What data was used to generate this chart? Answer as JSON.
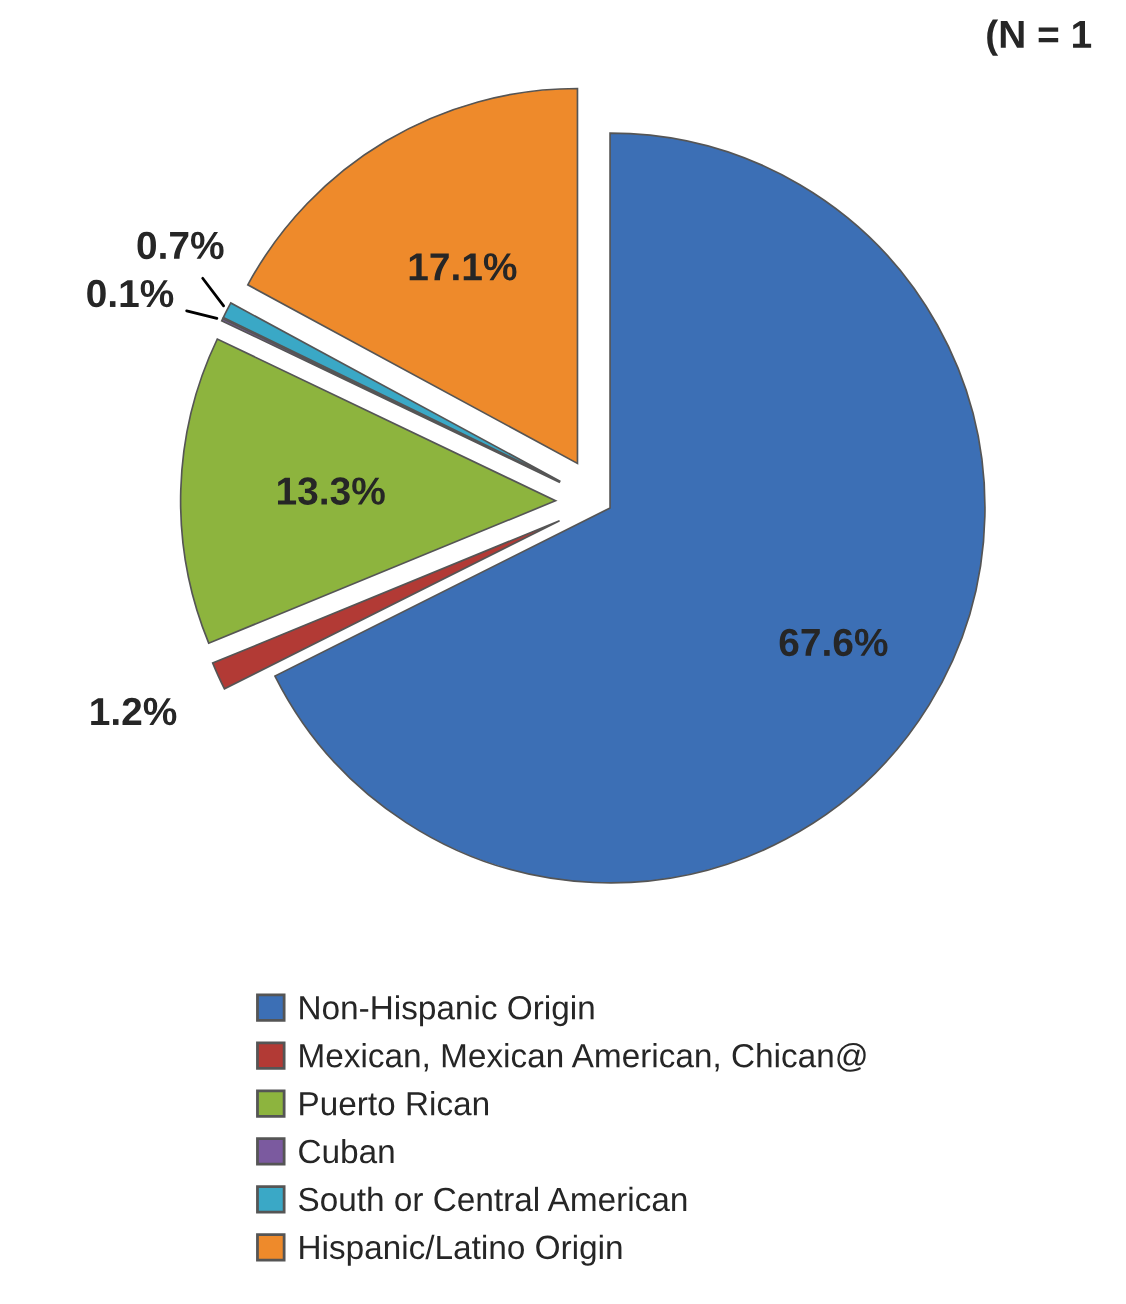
{
  "chart_data": {
    "type": "pie",
    "categories": [
      "Non-Hispanic Origin",
      "Mexican, Mexican American, Chican@",
      "Puerto Rican",
      "Cuban",
      "South or Central American",
      "Hispanic/Latino Origin"
    ],
    "values": [
      67.6,
      1.2,
      13.3,
      0.1,
      0.7,
      17.1
    ],
    "colors": [
      "#3c6fb5",
      "#b23a35",
      "#8db43e",
      "#7b5a9f",
      "#3aa8c6",
      "#ee8a2b"
    ],
    "value_labels": [
      "67.6%",
      "1.2%",
      "13.3%",
      "0.1%",
      "0.7%",
      "17.1%"
    ],
    "annotations": [
      "(N = 1"
    ],
    "legend": "bottom"
  }
}
